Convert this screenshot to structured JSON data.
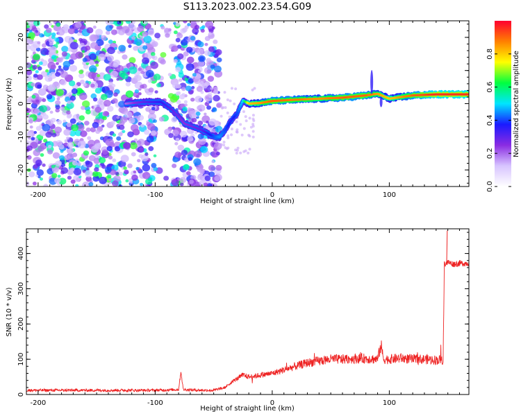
{
  "chart_data": [
    {
      "type": "heatmap",
      "title": "S113.2023.002.23.54.G09",
      "xlabel": "Height of straight line (km)",
      "ylabel": "Frequency (Hz)",
      "xlim": [
        -210,
        168
      ],
      "ylim": [
        -25,
        25
      ],
      "x_ticks": [
        -200,
        -100,
        0,
        100
      ],
      "y_ticks": [
        -20,
        -10,
        0,
        10,
        20
      ],
      "colorbar": {
        "label": "Normalized spectral amplitude",
        "range": [
          0.0,
          1.0
        ],
        "ticks": [
          0.0,
          0.2,
          0.4,
          0.6,
          0.8
        ],
        "colormap": "gist_rainbow",
        "colors": [
          "#ffffff",
          "#d7c4ff",
          "#8a2be2",
          "#1a1aff",
          "#00e5ff",
          "#00ff40",
          "#ffff00",
          "#ff8000",
          "#ff0030"
        ]
      },
      "ridge": {
        "x": [
          -125,
          -110,
          -95,
          -85,
          -75,
          -60,
          -50,
          -45,
          -40,
          -35,
          -30,
          -25,
          -20,
          -10,
          0,
          20,
          40,
          60,
          80,
          90,
          100,
          110,
          120,
          140,
          168
        ],
        "y": [
          0,
          0.5,
          0.5,
          -2,
          -6,
          -8,
          -10,
          -10,
          -8,
          -5,
          -3,
          1,
          0,
          0.2,
          0.8,
          1.2,
          1.5,
          1.8,
          2.5,
          3,
          1.5,
          2,
          2.5,
          2.8,
          2.8
        ],
        "amp": [
          0.2,
          0.3,
          0.35,
          0.3,
          0.25,
          0.3,
          0.4,
          0.45,
          0.4,
          0.35,
          0.4,
          0.5,
          0.8,
          0.85,
          0.9,
          0.88,
          0.85,
          0.9,
          0.9,
          0.85,
          0.8,
          0.85,
          0.9,
          0.95,
          0.95
        ]
      },
      "noise_region_x": [
        -210,
        -45
      ]
    },
    {
      "type": "line",
      "title": "",
      "xlabel": "Height of straight line (km)",
      "ylabel": "SNR (10 * v/v)",
      "xlim": [
        -210,
        168
      ],
      "ylim": [
        0,
        470
      ],
      "x_ticks": [
        -200,
        -100,
        0,
        100
      ],
      "y_ticks": [
        0,
        100,
        200,
        300,
        400
      ],
      "color": "#ee2222",
      "series": [
        {
          "x": [
            -210,
            -150,
            -100,
            -80,
            -78,
            -76,
            -60,
            -50,
            -40,
            -35,
            -30,
            -25,
            -20,
            -10,
            0,
            10,
            20,
            30,
            40,
            50,
            60,
            70,
            80,
            90,
            93,
            95,
            100,
            110,
            120,
            130,
            140,
            146,
            147,
            150,
            155,
            160,
            168
          ],
          "y": [
            12,
            12,
            12,
            14,
            65,
            14,
            12,
            12,
            20,
            35,
            45,
            55,
            50,
            55,
            60,
            70,
            80,
            90,
            95,
            100,
            100,
            102,
            102,
            100,
            140,
            100,
            100,
            103,
            100,
            100,
            98,
            98,
            370,
            375,
            370,
            372,
            372
          ]
        }
      ]
    }
  ]
}
